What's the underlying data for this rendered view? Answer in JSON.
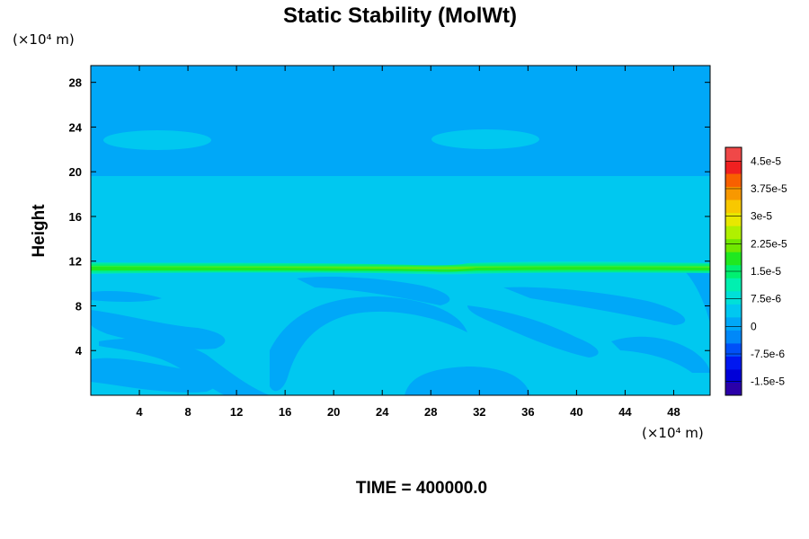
{
  "chart_data": {
    "type": "heatmap",
    "title": "Static Stability (MolWt)",
    "ylabel": "Height",
    "x_unit_label": "(×10⁴ m)",
    "y_unit_label": "(×10⁴ m)",
    "xlim": [
      0,
      51
    ],
    "ylim": [
      0,
      29.5
    ],
    "x_ticks": [
      4,
      8,
      12,
      16,
      20,
      24,
      28,
      32,
      36,
      40,
      44,
      48
    ],
    "y_ticks": [
      4,
      8,
      12,
      16,
      20,
      24,
      28
    ],
    "colorbar": {
      "labels": [
        "4.5e-5",
        "3.75e-5",
        "3e-5",
        "2.25e-5",
        "1.5e-5",
        "7.5e-6",
        "0",
        "-7.5e-6",
        "-1.5e-5"
      ],
      "min": -1.875e-05,
      "max": 4.875e-05,
      "colors": [
        "#2a00a8",
        "#0000d8",
        "#0018f0",
        "#0050f8",
        "#0088f8",
        "#00a8f8",
        "#00c8f0",
        "#00e0d8",
        "#00f0b0",
        "#00f070",
        "#20e820",
        "#70e800",
        "#b0f000",
        "#e8e800",
        "#f8c800",
        "#f89800",
        "#f86000",
        "#f02020",
        "#f04848"
      ]
    },
    "fields": {
      "upper_layer": {
        "y_range": [
          20,
          29.5
        ],
        "value": 0
      },
      "middle_layer": {
        "y_range": [
          0,
          20
        ],
        "value": 5e-06
      },
      "jet_band": {
        "y_center": 11.5,
        "peak": 2.2e-05
      }
    },
    "footer": "TIME = 400000.0"
  }
}
